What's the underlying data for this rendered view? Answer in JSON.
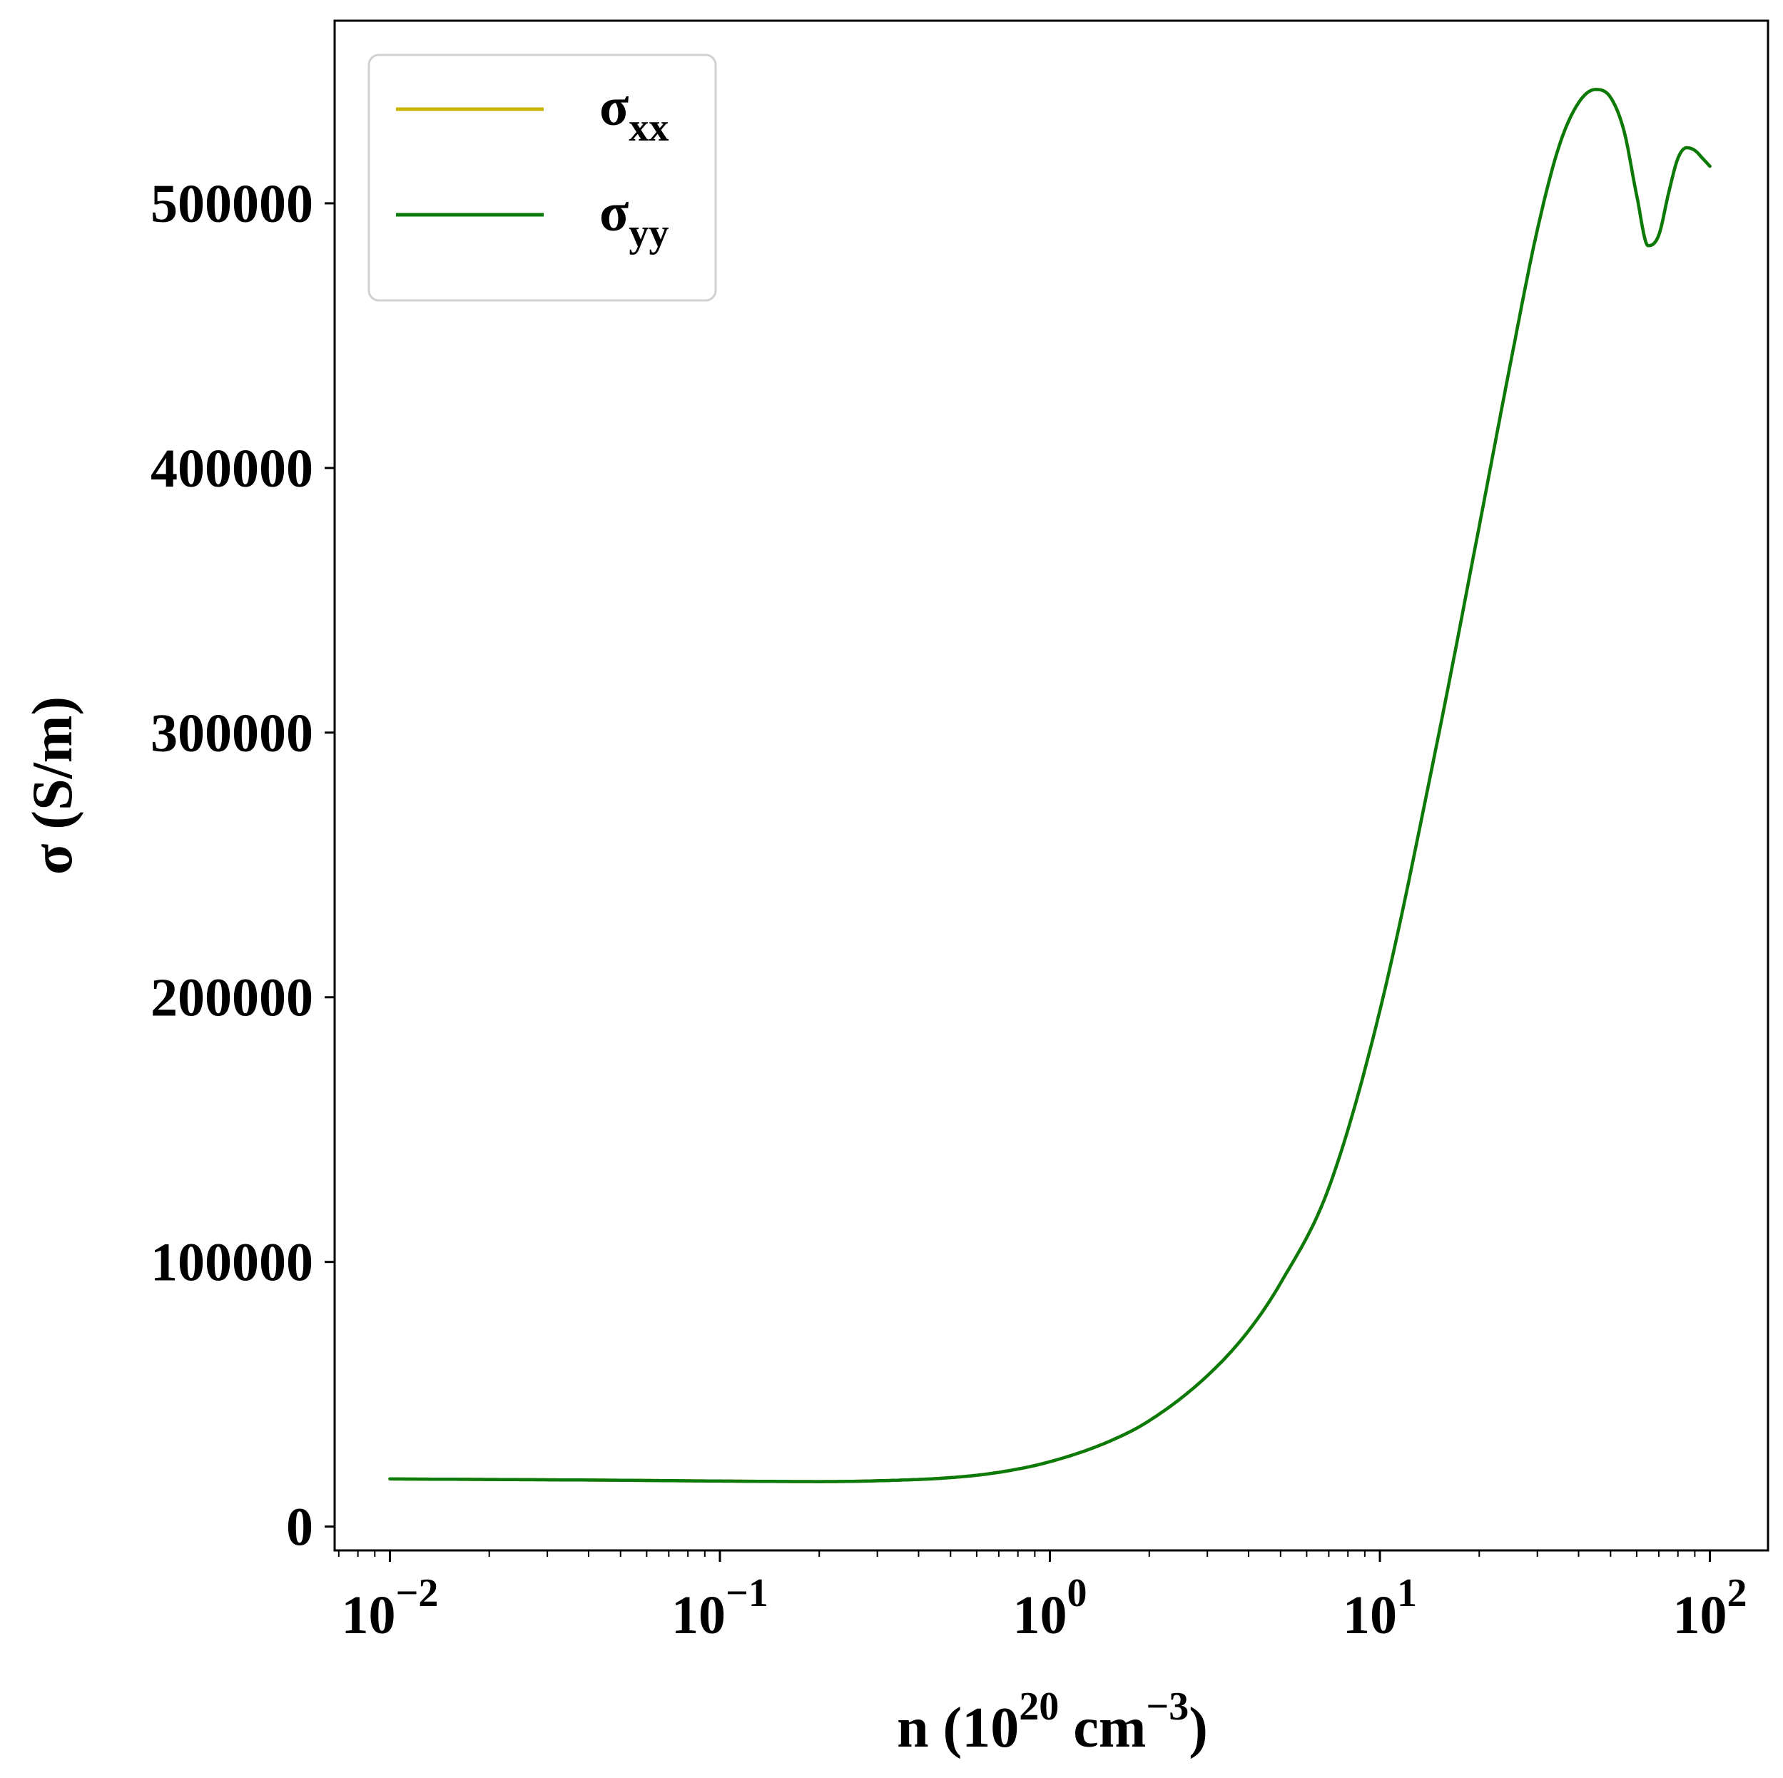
{
  "chart_data": {
    "type": "line",
    "xlabel": {
      "main": "n (10",
      "sup1": "20",
      "mid": " cm",
      "sup2": "−3",
      "end": ")"
    },
    "ylabel": "σ (S/m)",
    "x_scale": "log",
    "xlim": [
      0.0068,
      150
    ],
    "ylim": [
      -9000,
      569000
    ],
    "grid": false,
    "legend_position": "top-left",
    "x_ticks": [
      {
        "value": 0.01,
        "base": "10",
        "exp": "−2"
      },
      {
        "value": 0.1,
        "base": "10",
        "exp": "−1"
      },
      {
        "value": 1,
        "base": "10",
        "exp": "0"
      },
      {
        "value": 10,
        "base": "10",
        "exp": "1"
      },
      {
        "value": 100,
        "base": "10",
        "exp": "2"
      }
    ],
    "y_ticks": [
      {
        "value": 0,
        "label": "0"
      },
      {
        "value": 100000,
        "label": "100000"
      },
      {
        "value": 200000,
        "label": "200000"
      },
      {
        "value": 300000,
        "label": "300000"
      },
      {
        "value": 400000,
        "label": "400000"
      },
      {
        "value": 500000,
        "label": "500000"
      }
    ],
    "series": [
      {
        "name": "σxx",
        "label_main": "σ",
        "label_sub": "xx",
        "color": "#c8b400",
        "x": [
          0.01,
          0.02,
          0.05,
          0.1,
          0.2,
          0.3,
          0.5,
          0.7,
          1,
          1.5,
          2,
          3,
          4,
          5,
          7,
          10,
          15,
          20,
          25,
          30,
          35,
          40,
          45,
          50,
          55,
          60,
          65,
          70,
          75,
          80,
          85,
          90,
          95,
          100
        ],
        "y": [
          18000,
          17800,
          17500,
          17200,
          17000,
          17300,
          18500,
          20500,
          24500,
          32000,
          40000,
          57000,
          74000,
          92000,
          128000,
          195000,
          298000,
          378000,
          441000,
          490000,
          522000,
          538000,
          543000,
          540000,
          527000,
          503000,
          484000,
          488000,
          504000,
          517000,
          521000,
          520000,
          517000,
          514000
        ]
      },
      {
        "name": "σyy",
        "label_main": "σ",
        "label_sub": "yy",
        "color": "#0b7a0b",
        "x": [
          0.01,
          0.02,
          0.05,
          0.1,
          0.2,
          0.3,
          0.5,
          0.7,
          1,
          1.5,
          2,
          3,
          4,
          5,
          7,
          10,
          15,
          20,
          25,
          30,
          35,
          40,
          45,
          50,
          55,
          60,
          65,
          70,
          75,
          80,
          85,
          90,
          95,
          100
        ],
        "y": [
          18000,
          17800,
          17500,
          17200,
          17000,
          17300,
          18500,
          20500,
          24500,
          32000,
          40000,
          57000,
          74000,
          92000,
          128000,
          195000,
          298000,
          378000,
          441000,
          490000,
          522000,
          538000,
          543000,
          540000,
          527000,
          503000,
          484000,
          488000,
          504000,
          517000,
          521000,
          520000,
          517000,
          514000
        ]
      }
    ]
  }
}
